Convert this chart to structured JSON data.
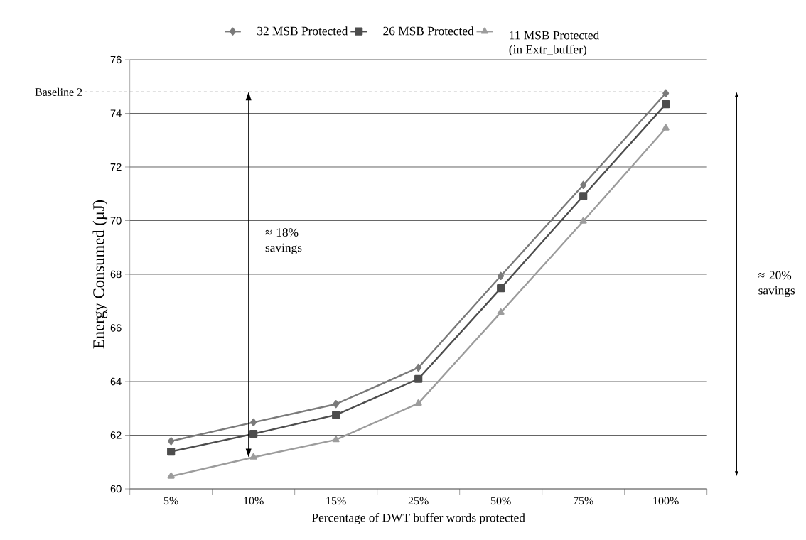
{
  "chart_data": {
    "type": "line",
    "categories": [
      "5%",
      "10%",
      "15%",
      "25%",
      "50%",
      "75%",
      "100%"
    ],
    "series": [
      {
        "name": "32 MSB Protected",
        "color": "#7a7a7a",
        "marker": "diamond",
        "values": [
          61.78,
          62.48,
          63.16,
          64.52,
          67.94,
          71.33,
          74.75
        ]
      },
      {
        "name": "26 MSB Protected",
        "color": "#4d4d4d",
        "marker": "square",
        "values": [
          61.39,
          62.05,
          62.76,
          64.1,
          67.48,
          70.92,
          74.34
        ]
      },
      {
        "name": "11 MSB Protected (in Extr_buffer)",
        "color": "#9c9c9c",
        "marker": "triangle",
        "values": [
          60.47,
          61.18,
          61.83,
          63.19,
          66.58,
          69.98,
          73.45
        ]
      }
    ],
    "xlabel": "Percentage of DWT buffer words protected",
    "ylabel": "Energy Consumed (µJ)",
    "ylim": [
      60,
      76
    ],
    "yticks": [
      60,
      62,
      64,
      66,
      68,
      70,
      72,
      74,
      76
    ],
    "grid": "y",
    "legend": "top",
    "line_style": "solid",
    "ref_lines": [
      {
        "axis": "y",
        "value": 74.8,
        "label": "Baseline 2",
        "color": "#555555",
        "line_style": "dashed"
      }
    ],
    "annotations": [
      "≈ 18% savings",
      "≈ 20% savings"
    ]
  }
}
